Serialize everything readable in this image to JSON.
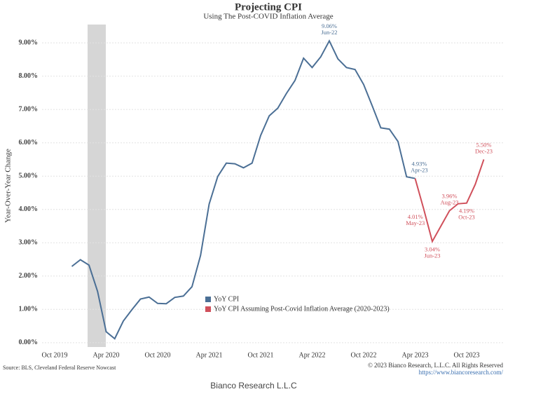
{
  "chart_data": {
    "type": "line",
    "title": "Projecting CPI",
    "subtitle": "Using The Post-COVID Inflation Average",
    "y_label": "Year-Over-Year Change",
    "categories": [
      "Oct 2019",
      null,
      null,
      null,
      null,
      null,
      "Apr 2020",
      null,
      null,
      null,
      null,
      null,
      "Oct 2020",
      null,
      null,
      null,
      null,
      null,
      "Apr 2021",
      null,
      null,
      null,
      null,
      null,
      "Oct 2021",
      null,
      null,
      null,
      null,
      null,
      "Apr 2022",
      null,
      null,
      null,
      null,
      null,
      "Oct 2022",
      null,
      null,
      null,
      null,
      null,
      "Apr 2023",
      null,
      null,
      null,
      null,
      null,
      "Oct 2023",
      null,
      null
    ],
    "series": [
      {
        "name": "YoY CPI",
        "color": "#4b6f95",
        "values": [
          null,
          null,
          2.29,
          2.49,
          2.33,
          1.54,
          0.33,
          0.12,
          0.65,
          0.99,
          1.31,
          1.37,
          1.18,
          1.17,
          1.36,
          1.4,
          1.68,
          2.62,
          4.16,
          4.99,
          5.39,
          5.37,
          5.25,
          5.39,
          6.22,
          6.81,
          7.04,
          7.48,
          7.87,
          8.54,
          8.26,
          8.58,
          9.06,
          8.52,
          8.26,
          8.2,
          7.75,
          7.11,
          6.45,
          6.41,
          6.04,
          4.98,
          4.93,
          null,
          null,
          null,
          null,
          null,
          null,
          null,
          null
        ],
        "value_labels": [
          null,
          null,
          null,
          null,
          null,
          null,
          null,
          null,
          null,
          null,
          null,
          null,
          null,
          null,
          null,
          null,
          null,
          null,
          null,
          null,
          null,
          null,
          null,
          null,
          null,
          null,
          null,
          null,
          null,
          null,
          null,
          null,
          "9.06%",
          null,
          null,
          null,
          null,
          null,
          null,
          null,
          null,
          null,
          "4.93%",
          null,
          null,
          null,
          null,
          null,
          null,
          null,
          null
        ],
        "point_labels": [
          null,
          null,
          null,
          null,
          null,
          null,
          null,
          null,
          null,
          null,
          null,
          null,
          null,
          null,
          null,
          null,
          null,
          null,
          null,
          null,
          null,
          null,
          null,
          null,
          null,
          null,
          null,
          null,
          null,
          null,
          null,
          null,
          "Jun-22",
          null,
          null,
          null,
          null,
          null,
          null,
          null,
          null,
          null,
          "Apr-23",
          null,
          null,
          null,
          null,
          null,
          null,
          null,
          null
        ]
      },
      {
        "name": "YoY CPI Assuming Post-Covid Inflation Average (2020-2023)",
        "color": "#d0505b",
        "values": [
          null,
          null,
          null,
          null,
          null,
          null,
          null,
          null,
          null,
          null,
          null,
          null,
          null,
          null,
          null,
          null,
          null,
          null,
          null,
          null,
          null,
          null,
          null,
          null,
          null,
          null,
          null,
          null,
          null,
          null,
          null,
          null,
          null,
          null,
          null,
          null,
          null,
          null,
          null,
          null,
          null,
          null,
          4.93,
          4.01,
          3.04,
          3.5,
          3.96,
          4.17,
          4.19,
          4.75,
          5.5
        ],
        "value_labels": [
          null,
          null,
          null,
          null,
          null,
          null,
          null,
          null,
          null,
          null,
          null,
          null,
          null,
          null,
          null,
          null,
          null,
          null,
          null,
          null,
          null,
          null,
          null,
          null,
          null,
          null,
          null,
          null,
          null,
          null,
          null,
          null,
          null,
          null,
          null,
          null,
          null,
          null,
          null,
          null,
          null,
          null,
          null,
          "4.01%",
          "3.04%",
          null,
          "3.96%",
          null,
          "4.19%",
          null,
          "5.50%"
        ],
        "point_labels": [
          null,
          null,
          null,
          null,
          null,
          null,
          null,
          null,
          null,
          null,
          null,
          null,
          null,
          null,
          null,
          null,
          null,
          null,
          null,
          null,
          null,
          null,
          null,
          null,
          null,
          null,
          null,
          null,
          null,
          null,
          null,
          null,
          null,
          null,
          null,
          null,
          null,
          null,
          null,
          null,
          null,
          null,
          null,
          "May-23",
          "Jun-23",
          null,
          "Aug-23",
          null,
          "Oct-23",
          null,
          "Dec-23"
        ]
      }
    ],
    "ylim": [
      -0.13,
      9.55
    ],
    "yticks": [
      {
        "value": 0,
        "label": "0.00%"
      },
      {
        "value": 1,
        "label": "1.00%"
      },
      {
        "value": 2,
        "label": "2.00%"
      },
      {
        "value": 3,
        "label": "3.00%"
      },
      {
        "value": 4,
        "label": "4.00%"
      },
      {
        "value": 5,
        "label": "5.00%"
      },
      {
        "value": 6,
        "label": "6.00%"
      },
      {
        "value": 7,
        "label": "7.00%"
      },
      {
        "value": 8,
        "label": "8.00%"
      },
      {
        "value": 9,
        "label": "9.00%"
      }
    ],
    "grid": true,
    "source": "Source: BLS, Cleveland Federal Reserve Nowcast",
    "copyright": "© 2023 Bianco Research, L.L.C. All Rights Reserved",
    "url": "https://www.biancoresearch.com/",
    "footer": "Bianco Research L.L.C"
  }
}
